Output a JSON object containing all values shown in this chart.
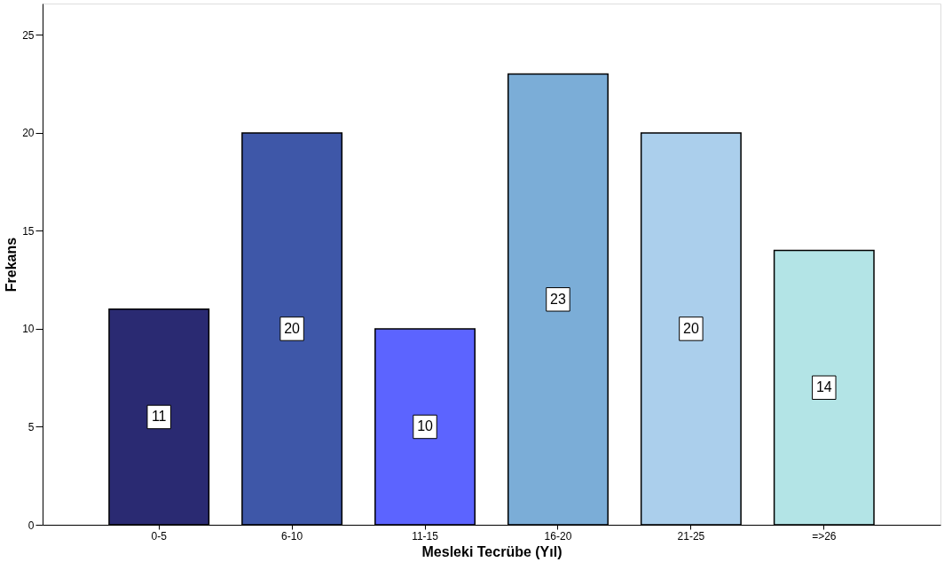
{
  "chart_data": {
    "type": "bar",
    "xlabel": "Mesleki Tecrübe (Yıl)",
    "ylabel": "Frekans",
    "categories": [
      "0-5",
      "6-10",
      "11-15",
      "16-20",
      "21-25",
      "=>26"
    ],
    "values": [
      11,
      20,
      10,
      23,
      20,
      14
    ],
    "colors": [
      "#2a2a72",
      "#3e57a8",
      "#5c64ff",
      "#7badd7",
      "#abcfec",
      "#b3e4e6"
    ],
    "ylim": [
      0,
      26.6
    ],
    "yticks": [
      0,
      5,
      10,
      15,
      20,
      25
    ],
    "grid": false,
    "legend": false,
    "data_labels": true
  }
}
